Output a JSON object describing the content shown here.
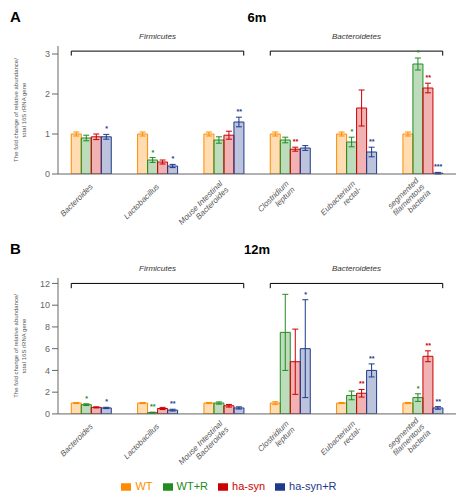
{
  "chart_data": [
    {
      "type": "bar",
      "title": "6m",
      "ylabel": "The fold change of relative abundance/\ntotal 16S rRNA gene",
      "annotations": [
        {
          "text": "A"
        },
        {
          "text": "Firmicutes",
          "categories": [
            0,
            1,
            2
          ]
        },
        {
          "text": "Bacteroidetes",
          "categories": [
            3,
            4,
            5
          ]
        }
      ],
      "categories": [
        "Bacteroides",
        "Lactobacillus",
        "Mouse Intestinal\nBacteroides",
        "Clostridium\nleptum",
        "Eubacterium\nrectal-",
        "segmented\nfilamentous\nbacteria"
      ],
      "ylim": [
        0,
        3.2
      ],
      "yticks": [
        0,
        1,
        2,
        3
      ],
      "series": [
        {
          "name": "WT",
          "color": "#FF8C00",
          "values": [
            1.0,
            1.0,
            1.0,
            1.0,
            1.0,
            1.0
          ],
          "errors": [
            0.05,
            0.05,
            0.05,
            0.05,
            0.05,
            0.05
          ]
        },
        {
          "name": "WT+R",
          "color": "#228B22",
          "values": [
            0.9,
            0.35,
            0.85,
            0.85,
            0.8,
            2.75
          ],
          "errors": [
            0.07,
            0.06,
            0.08,
            0.07,
            0.12,
            0.15
          ],
          "significance": [
            null,
            "*",
            null,
            null,
            "*",
            "*"
          ]
        },
        {
          "name": "ha-syn",
          "color": "#CC0000",
          "values": [
            0.93,
            0.3,
            0.97,
            0.62,
            1.65,
            2.15
          ],
          "errors": [
            0.07,
            0.05,
            0.1,
            0.05,
            0.45,
            0.12
          ],
          "significance": [
            null,
            null,
            null,
            "**",
            null,
            "**"
          ]
        },
        {
          "name": "ha-syn+R",
          "color": "#1E3A8A",
          "values": [
            0.93,
            0.2,
            1.3,
            0.65,
            0.55,
            0.02
          ],
          "errors": [
            0.06,
            0.04,
            0.12,
            0.06,
            0.12,
            0.02
          ],
          "significance": [
            "*",
            "*",
            "**",
            null,
            "**",
            "***"
          ]
        }
      ]
    },
    {
      "type": "bar",
      "title": "12m",
      "ylabel": "The fold change of relative abundance/\ntotal 16S rRNA gene",
      "annotations": [
        {
          "text": "B"
        },
        {
          "text": "Firmicutes",
          "categories": [
            0,
            1,
            2
          ]
        },
        {
          "text": "Bacteroidetes",
          "categories": [
            3,
            4,
            5
          ]
        }
      ],
      "categories": [
        "Bacteroides",
        "Lactobacillus",
        "Mouse Intestinal\nBacteroides",
        "Clostridium\nleptum",
        "Eubacterium\nrectal-",
        "segmented\nfilamentous\nbacteria"
      ],
      "ylim": [
        0,
        12.5
      ],
      "yticks": [
        0,
        2,
        4,
        6,
        8,
        10,
        12
      ],
      "legend": "bottom",
      "series": [
        {
          "name": "WT",
          "color": "#FF8C00",
          "values": [
            1.0,
            1.0,
            1.0,
            1.0,
            1.0,
            1.0
          ],
          "errors": [
            0.05,
            0.05,
            0.05,
            0.12,
            0.05,
            0.05
          ]
        },
        {
          "name": "WT+R",
          "color": "#228B22",
          "values": [
            0.85,
            0.12,
            1.0,
            7.5,
            1.7,
            1.5
          ],
          "errors": [
            0.08,
            0.04,
            0.1,
            3.5,
            0.4,
            0.35
          ],
          "significance": [
            "*",
            "**",
            null,
            null,
            null,
            "*"
          ]
        },
        {
          "name": "ha-syn",
          "color": "#CC0000",
          "values": [
            0.6,
            0.5,
            0.75,
            4.8,
            1.9,
            5.3
          ],
          "errors": [
            0.05,
            0.1,
            0.12,
            3.0,
            0.35,
            0.5
          ],
          "significance": [
            null,
            null,
            null,
            null,
            "**",
            "**"
          ]
        },
        {
          "name": "ha-syn+R",
          "color": "#1E3A8A",
          "values": [
            0.55,
            0.35,
            0.55,
            6.0,
            4.0,
            0.55
          ],
          "errors": [
            0.06,
            0.08,
            0.1,
            4.5,
            0.6,
            0.12
          ],
          "significance": [
            "*",
            "**",
            null,
            "*",
            "**",
            "**"
          ]
        }
      ]
    }
  ]
}
